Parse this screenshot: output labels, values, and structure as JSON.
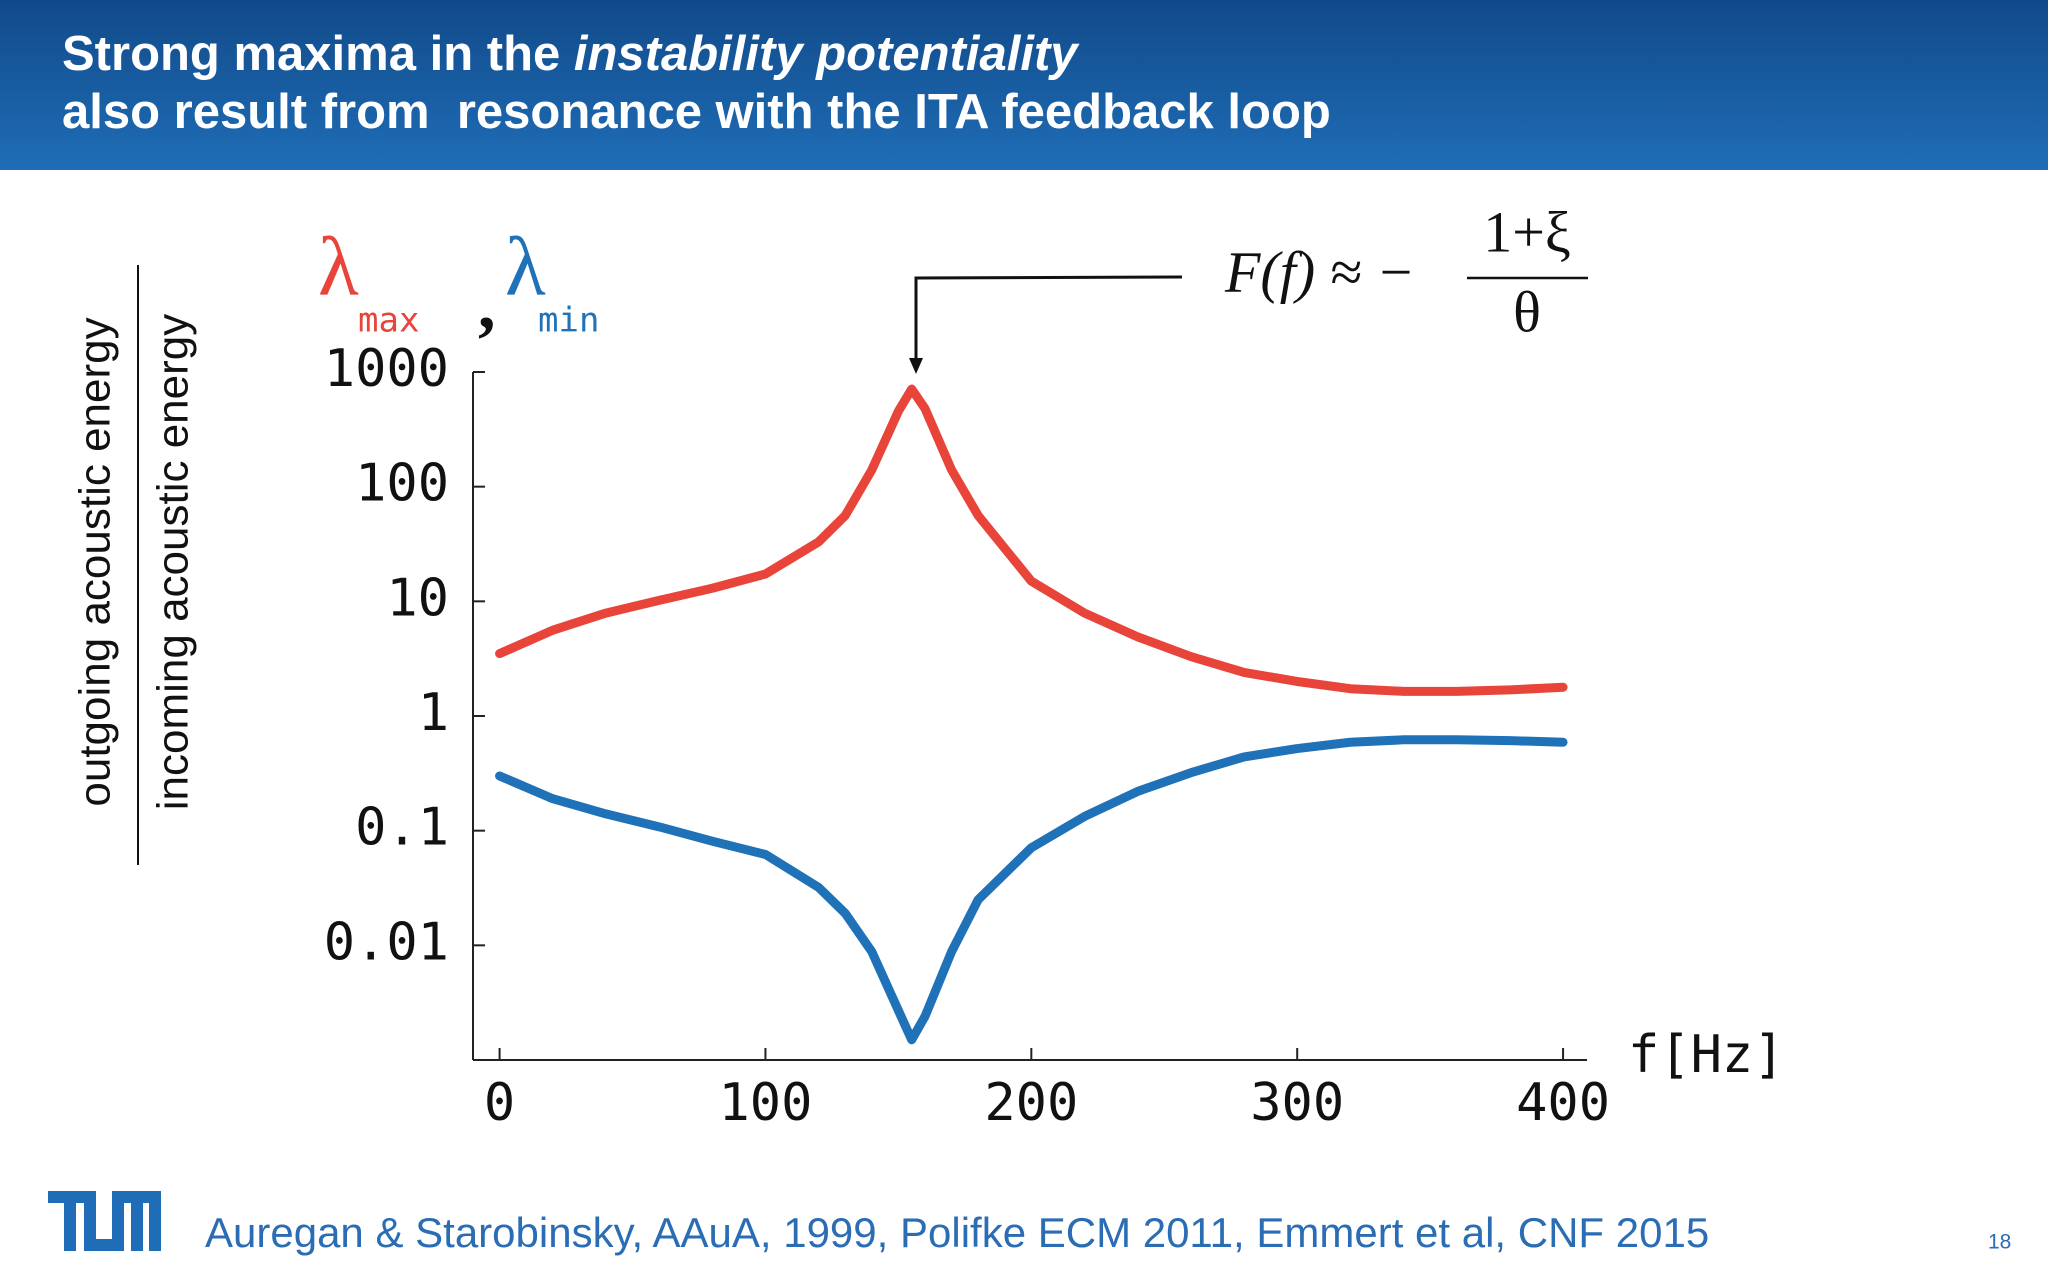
{
  "slide": {
    "title_line1": {
      "plain": "Strong maxima in the ",
      "italic": "instability potentiality"
    },
    "title_line2": "also result from  resonance with the ITA feedback loop",
    "citation": "Auregan & Starobinsky, AAuA, 1999, Polifke ECM 2011, Emmert et al, CNF 2015",
    "page_number": "18"
  },
  "chart_data": {
    "type": "line",
    "ylabel_numerator": "outgoing acoustic energy",
    "ylabel_denominator": "incoming acoustic energy",
    "xlabel": "f[Hz]",
    "legend_separator": ",",
    "annotation": {
      "lhs": "F(f) ≈ −",
      "numerator": "1+ξ",
      "denominator": "θ"
    },
    "x": [
      0,
      20,
      40,
      60,
      80,
      100,
      120,
      130,
      140,
      150,
      155,
      160,
      170,
      180,
      200,
      220,
      240,
      260,
      280,
      300,
      320,
      340,
      360,
      380,
      400
    ],
    "series": [
      {
        "name": "λ",
        "subscript": "max",
        "color": "#e8443a",
        "values": [
          3.5,
          5.6,
          7.9,
          10.2,
          13,
          17.3,
          33,
          56,
          140,
          455,
          710,
          480,
          140,
          56,
          15,
          7.9,
          4.9,
          3.3,
          2.4,
          2.0,
          1.73,
          1.64,
          1.64,
          1.69,
          1.78
        ]
      },
      {
        "name": "λ",
        "subscript": "min",
        "color": "#1f72b8",
        "values": [
          0.3,
          0.19,
          0.14,
          0.108,
          0.081,
          0.062,
          0.032,
          0.019,
          0.0088,
          0.0027,
          0.0015,
          0.0024,
          0.0088,
          0.025,
          0.071,
          0.133,
          0.22,
          0.32,
          0.44,
          0.52,
          0.59,
          0.62,
          0.62,
          0.61,
          0.59
        ]
      }
    ],
    "log_y": true,
    "xlim": [
      -10,
      409
    ],
    "ylim": [
      0.001,
      1000
    ],
    "xticks": [
      0,
      100,
      200,
      300,
      400
    ],
    "yticks": [
      0.01,
      0.1,
      1,
      10,
      100,
      1000
    ]
  }
}
